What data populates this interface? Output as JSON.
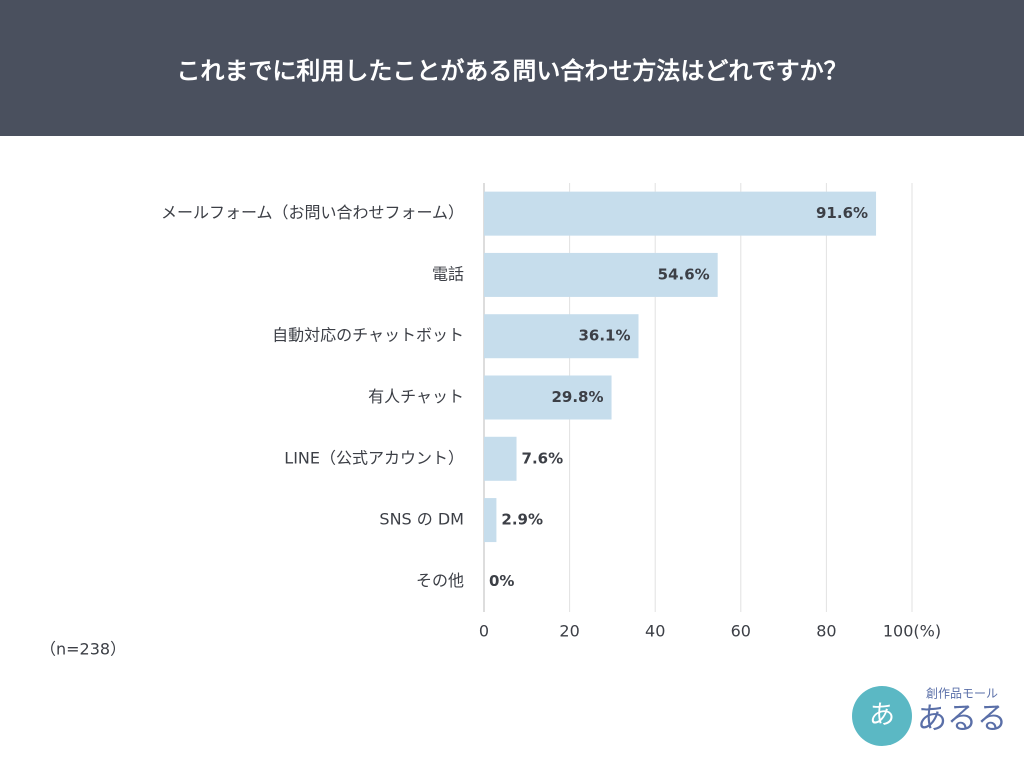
{
  "chart_data": {
    "type": "hbar",
    "title": "これまでに利用したことがある問い合わせ方法はどれですか？",
    "categories": [
      "メールフォーム（お問い合わせフォーム）",
      "電話",
      "自動対応のチャットボット",
      "有人チャット",
      "LINE（公式アカウント）",
      "SNS の DM",
      "その他"
    ],
    "values": [
      91.6,
      54.6,
      36.1,
      29.8,
      7.6,
      2.9,
      0
    ],
    "value_labels": [
      "91.6%",
      "54.6%",
      "36.1%",
      "29.8%",
      "7.6%",
      "2.9%",
      "0%"
    ],
    "color": "#c6ddec",
    "xlim": [
      0,
      100
    ],
    "xticks": [
      0,
      20,
      40,
      60,
      80,
      {
        "value": 100,
        "label": "100(%)"
      }
    ],
    "grid": true,
    "note": "（n=238）"
  },
  "logo": {
    "tagline": "創作品モール",
    "name": "あるる"
  }
}
